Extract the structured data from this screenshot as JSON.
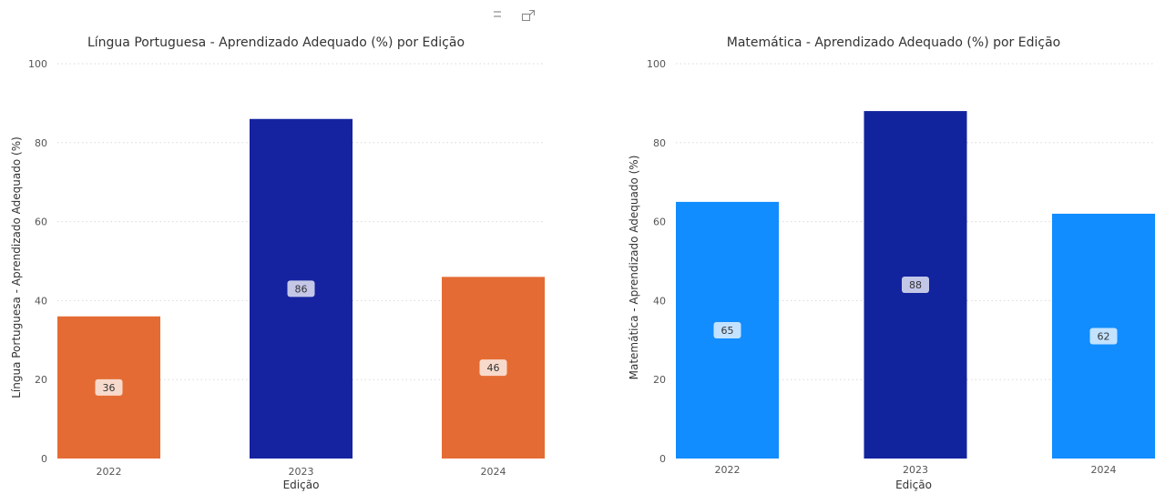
{
  "toolbar": {
    "filter_icon": "filter-icon",
    "focus_icon": "focus-mode-icon"
  },
  "chart_data": [
    {
      "type": "bar",
      "title": "Língua Portuguesa - Aprendizado Adequado (%) por Edição",
      "xlabel": "Edição",
      "ylabel": "Língua Portuguesa - Aprendizado Adequado (%)",
      "categories": [
        "2022",
        "2023",
        "2024"
      ],
      "values": [
        36,
        86,
        46
      ],
      "data_labels": [
        "36",
        "86",
        "46"
      ],
      "colors": [
        "#E46C34",
        "#1523A0",
        "#E46C34"
      ],
      "ylim": [
        0,
        100
      ],
      "yticks": [
        0,
        20,
        40,
        60,
        80,
        100
      ],
      "ytick_labels": [
        "0",
        "20",
        "40",
        "60",
        "80",
        "100"
      ],
      "grid": true
    },
    {
      "type": "bar",
      "title": "Matemática - Aprendizado Adequado (%) por Edição",
      "xlabel": "Edição",
      "ylabel": "Matemática - Aprendizado Adequado (%)",
      "categories": [
        "2022",
        "2023",
        "2024"
      ],
      "values": [
        65,
        88,
        62
      ],
      "data_labels": [
        "65",
        "88",
        "62"
      ],
      "colors": [
        "#118DFF",
        "#12239E",
        "#118DFF"
      ],
      "ylim": [
        0,
        100
      ],
      "yticks": [
        0,
        20,
        40,
        60,
        80,
        100
      ],
      "ytick_labels": [
        "0",
        "20",
        "40",
        "60",
        "80",
        "100"
      ],
      "grid": true
    }
  ]
}
